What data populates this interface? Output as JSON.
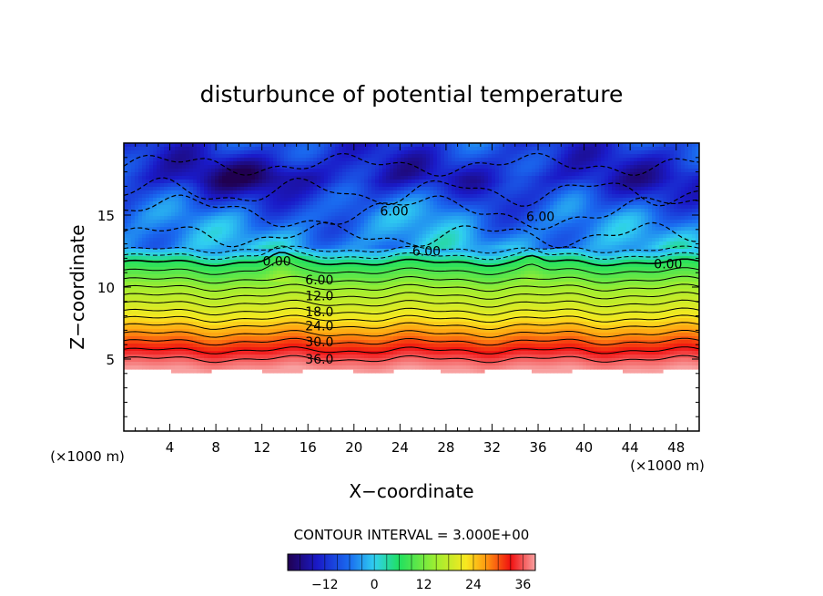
{
  "chart_data": {
    "type": "heatmap",
    "title": "disturbunce of potential temperature",
    "xlabel": "X−coordinate",
    "ylabel": "Z−coordinate",
    "x_unit": "(×1000 m)",
    "y_unit": "(×1000 m)",
    "xlim": [
      0,
      50
    ],
    "ylim": [
      0,
      20
    ],
    "x_ticks": [
      4,
      8,
      12,
      16,
      20,
      24,
      28,
      32,
      36,
      40,
      44,
      48
    ],
    "y_ticks": [
      5,
      10,
      15
    ],
    "contour_interval_label": "CONTOUR INTERVAL = 3.000E+00",
    "contour_interval": 3,
    "colorbar": {
      "min": -21,
      "max": 39,
      "ticks": [
        -12,
        0,
        12,
        24,
        36
      ]
    },
    "contour_labels": [
      {
        "text": "6.00",
        "x": 23.5,
        "z": 15.3
      },
      {
        "text": "6.00",
        "x": 36.2,
        "z": 14.9
      },
      {
        "text": "6.00",
        "x": 26.3,
        "z": 12.5
      },
      {
        "text": "0.00",
        "x": 13.3,
        "z": 11.8
      },
      {
        "text": "0.00",
        "x": 47.3,
        "z": 11.6
      },
      {
        "text": "6.00",
        "x": 17.0,
        "z": 10.5
      },
      {
        "text": "12.0",
        "x": 17.0,
        "z": 9.4
      },
      {
        "text": "18.0",
        "x": 17.0,
        "z": 8.3
      },
      {
        "text": "24.0",
        "x": 17.0,
        "z": 7.3
      },
      {
        "text": "30.0",
        "x": 17.0,
        "z": 6.2
      },
      {
        "text": "36.0",
        "x": 17.0,
        "z": 5.0
      }
    ],
    "profile": [
      {
        "z": 4.2,
        "value": 39
      },
      {
        "z": 5.0,
        "value": 36
      },
      {
        "z": 6.2,
        "value": 30
      },
      {
        "z": 7.3,
        "value": 24
      },
      {
        "z": 8.3,
        "value": 18
      },
      {
        "z": 9.4,
        "value": 12
      },
      {
        "z": 10.5,
        "value": 6
      },
      {
        "z": 11.7,
        "value": 0
      },
      {
        "z": 12.6,
        "value": -6
      },
      {
        "z": 15.0,
        "value": -9
      },
      {
        "z": 17.5,
        "value": -15
      },
      {
        "z": 20.0,
        "value": -12
      }
    ],
    "no_data_below_z": 4.2
  }
}
